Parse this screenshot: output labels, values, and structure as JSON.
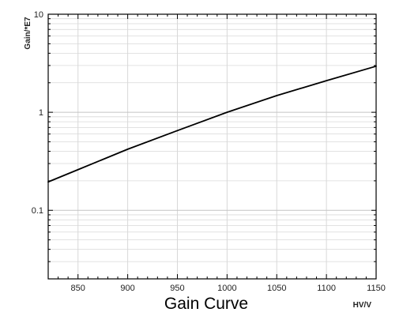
{
  "chart_data": {
    "type": "line",
    "title": "Gain Curve",
    "xlabel": "HV/V",
    "ylabel": "Gain/*E7",
    "xlim": [
      820,
      1150
    ],
    "ylim": [
      0.02,
      10
    ],
    "yscale": "log",
    "x_ticks": [
      "850",
      "900",
      "950",
      "1000",
      "1050",
      "1100",
      "1150"
    ],
    "y_ticks": [
      "0.1",
      "1",
      "10"
    ],
    "grid": true,
    "series": [
      {
        "x": [
          820,
          850,
          900,
          950,
          1000,
          1050,
          1100,
          1150
        ],
        "values": [
          0.195,
          0.26,
          0.42,
          0.65,
          1.0,
          1.48,
          2.1,
          2.95
        ]
      }
    ],
    "colors": {
      "line": "#000000",
      "grid": "#d8d8d8",
      "axes": "#000000"
    }
  }
}
